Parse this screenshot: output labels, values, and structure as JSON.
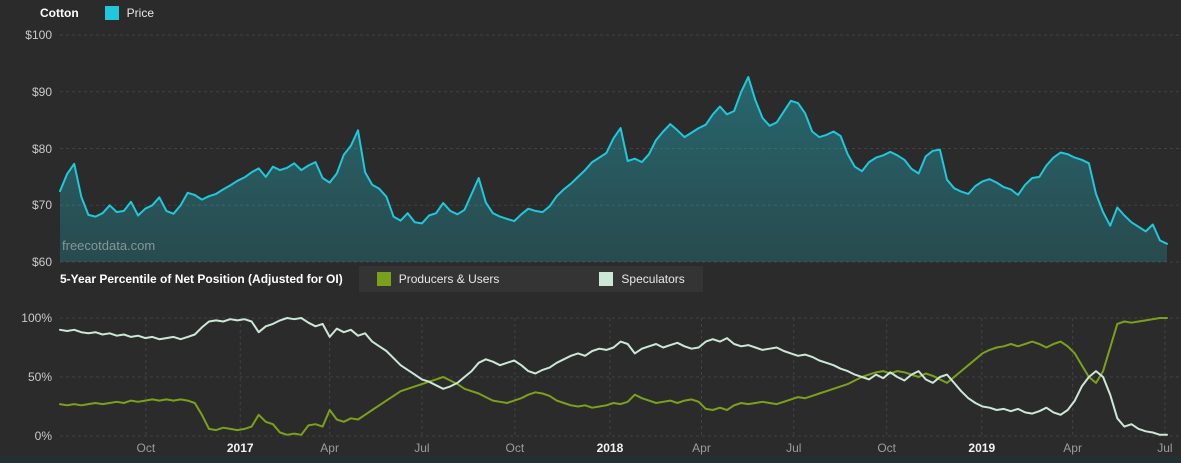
{
  "watermark": "freecotdata.com",
  "colors": {
    "background": "#2b2b2b",
    "grid": "#424242",
    "price": "#1fc8da",
    "producers": "#7ba11c",
    "speculators": "#cde7d6",
    "month_label": "#9c9c9c",
    "year_label": "#f2f2f2"
  },
  "x_ticks": [
    {
      "label": "Oct",
      "index": 12.1,
      "bold": false
    },
    {
      "label": "2017",
      "index": 25.4,
      "bold": true
    },
    {
      "label": "Apr",
      "index": 38.0,
      "bold": false
    },
    {
      "label": "Jul",
      "index": 51.0,
      "bold": false
    },
    {
      "label": "Oct",
      "index": 64.1,
      "bold": false
    },
    {
      "label": "2018",
      "index": 77.5,
      "bold": true
    },
    {
      "label": "Apr",
      "index": 90.4,
      "bold": false
    },
    {
      "label": "Jul",
      "index": 103.4,
      "bold": false
    },
    {
      "label": "Oct",
      "index": 116.5,
      "bold": false
    },
    {
      "label": "2019",
      "index": 129.9,
      "bold": true
    },
    {
      "label": "Apr",
      "index": 142.7,
      "bold": false
    },
    {
      "label": "Jul",
      "index": 155.7,
      "bold": false
    }
  ],
  "chart_data": [
    {
      "type": "area",
      "title": "Cotton",
      "legend": [
        {
          "label": "Price",
          "color": "#1fc8da"
        }
      ],
      "ylim": [
        60,
        100
      ],
      "yticks": [
        {
          "label": "$100",
          "value": 100
        },
        {
          "label": "$90",
          "value": 90
        },
        {
          "label": "$80",
          "value": 80
        },
        {
          "label": "$70",
          "value": 70
        },
        {
          "label": "$60",
          "value": 60
        }
      ],
      "values": [
        72.5,
        75.5,
        77.3,
        71.5,
        68.3,
        68.0,
        68.6,
        70.0,
        68.8,
        69.0,
        70.6,
        68.2,
        69.4,
        70.0,
        71.4,
        69.0,
        68.5,
        70.0,
        72.2,
        71.8,
        71.0,
        71.6,
        72.0,
        72.8,
        73.5,
        74.3,
        74.9,
        75.8,
        76.5,
        75.0,
        76.8,
        76.2,
        76.6,
        77.4,
        76.2,
        77.0,
        77.6,
        74.8,
        74.0,
        75.6,
        78.9,
        80.5,
        83.2,
        75.8,
        73.6,
        72.9,
        71.5,
        68.0,
        67.3,
        68.6,
        67.0,
        66.8,
        68.2,
        68.6,
        70.4,
        69.0,
        68.4,
        69.2,
        72.0,
        74.8,
        70.5,
        68.6,
        68.0,
        67.6,
        67.2,
        68.4,
        69.4,
        69.0,
        68.8,
        69.8,
        71.6,
        72.8,
        73.8,
        75.0,
        76.2,
        77.6,
        78.4,
        79.2,
        81.8,
        83.6,
        77.8,
        78.2,
        77.6,
        79.0,
        81.5,
        83.0,
        84.3,
        83.2,
        82.0,
        82.8,
        83.6,
        84.2,
        86.0,
        87.4,
        86.0,
        86.6,
        90.0,
        92.6,
        88.5,
        85.4,
        84.0,
        84.6,
        86.5,
        88.4,
        88.0,
        86.2,
        83.0,
        82.0,
        82.4,
        83.0,
        82.2,
        79.0,
        76.8,
        76.0,
        77.6,
        78.4,
        78.8,
        79.4,
        78.8,
        78.0,
        76.4,
        75.6,
        78.6,
        79.6,
        79.8,
        74.5,
        73.0,
        72.4,
        72.0,
        73.4,
        74.2,
        74.6,
        74.0,
        73.2,
        72.8,
        71.8,
        73.6,
        74.8,
        75.0,
        77.0,
        78.4,
        79.3,
        79.0,
        78.4,
        78.0,
        77.4,
        72.0,
        68.8,
        66.4,
        69.6,
        68.2,
        67.0,
        66.2,
        65.4,
        66.6,
        63.8,
        63.2
      ]
    },
    {
      "type": "line",
      "title": "5-Year Percentile of Net Position (Adjusted for OI)",
      "ylim": [
        0,
        100
      ],
      "yticks": [
        {
          "label": "100%",
          "value": 100
        },
        {
          "label": "50%",
          "value": 50
        },
        {
          "label": "0%",
          "value": 0
        }
      ],
      "series": [
        {
          "name": "Producers & Users",
          "color": "#7ba11c",
          "values": [
            27,
            26,
            27,
            26,
            27,
            28,
            27,
            28,
            29,
            28,
            30,
            29,
            30,
            31,
            30,
            31,
            30,
            31,
            30,
            28,
            18,
            6,
            5,
            7,
            6,
            5,
            6,
            8,
            18,
            12,
            10,
            3,
            1,
            2,
            1,
            9,
            10,
            8,
            22,
            14,
            12,
            15,
            14,
            18,
            22,
            26,
            30,
            34,
            38,
            40,
            42,
            44,
            46,
            48,
            50,
            47,
            44,
            40,
            38,
            36,
            33,
            30,
            29,
            28,
            30,
            32,
            35,
            37,
            36,
            34,
            30,
            28,
            26,
            25,
            26,
            24,
            25,
            26,
            28,
            27,
            29,
            35,
            32,
            30,
            28,
            29,
            30,
            28,
            30,
            31,
            29,
            23,
            22,
            24,
            22,
            26,
            28,
            27,
            28,
            29,
            28,
            27,
            29,
            31,
            33,
            32,
            34,
            36,
            38,
            40,
            42,
            44,
            47,
            50,
            52,
            54,
            55,
            53,
            55,
            54,
            52,
            50,
            53,
            51,
            48,
            45,
            50,
            55,
            60,
            65,
            70,
            73,
            75,
            76,
            78,
            76,
            78,
            80,
            78,
            75,
            78,
            80,
            76,
            70,
            60,
            50,
            45,
            55,
            75,
            95,
            97,
            96,
            97,
            98,
            99,
            100,
            100
          ]
        },
        {
          "name": "Speculators",
          "color": "#cde7d6",
          "values": [
            90,
            89,
            90,
            88,
            87,
            88,
            86,
            87,
            85,
            86,
            84,
            85,
            83,
            84,
            82,
            83,
            84,
            82,
            84,
            86,
            92,
            97,
            98,
            97,
            99,
            98,
            99,
            97,
            88,
            93,
            95,
            98,
            100,
            99,
            100,
            96,
            93,
            95,
            84,
            91,
            88,
            90,
            85,
            87,
            80,
            76,
            72,
            66,
            60,
            56,
            52,
            48,
            46,
            43,
            40,
            42,
            45,
            50,
            55,
            62,
            65,
            63,
            60,
            62,
            64,
            60,
            55,
            53,
            56,
            58,
            62,
            65,
            68,
            70,
            68,
            72,
            74,
            73,
            75,
            80,
            78,
            70,
            74,
            76,
            78,
            75,
            77,
            79,
            76,
            74,
            75,
            80,
            82,
            80,
            83,
            78,
            76,
            77,
            75,
            73,
            74,
            75,
            72,
            70,
            68,
            69,
            67,
            64,
            62,
            60,
            57,
            55,
            52,
            50,
            48,
            52,
            49,
            54,
            50,
            47,
            52,
            55,
            48,
            45,
            50,
            52,
            45,
            38,
            32,
            28,
            25,
            24,
            22,
            23,
            21,
            23,
            20,
            19,
            21,
            24,
            20,
            18,
            22,
            30,
            42,
            50,
            55,
            50,
            35,
            15,
            8,
            10,
            6,
            4,
            3,
            1,
            1
          ]
        }
      ]
    }
  ]
}
